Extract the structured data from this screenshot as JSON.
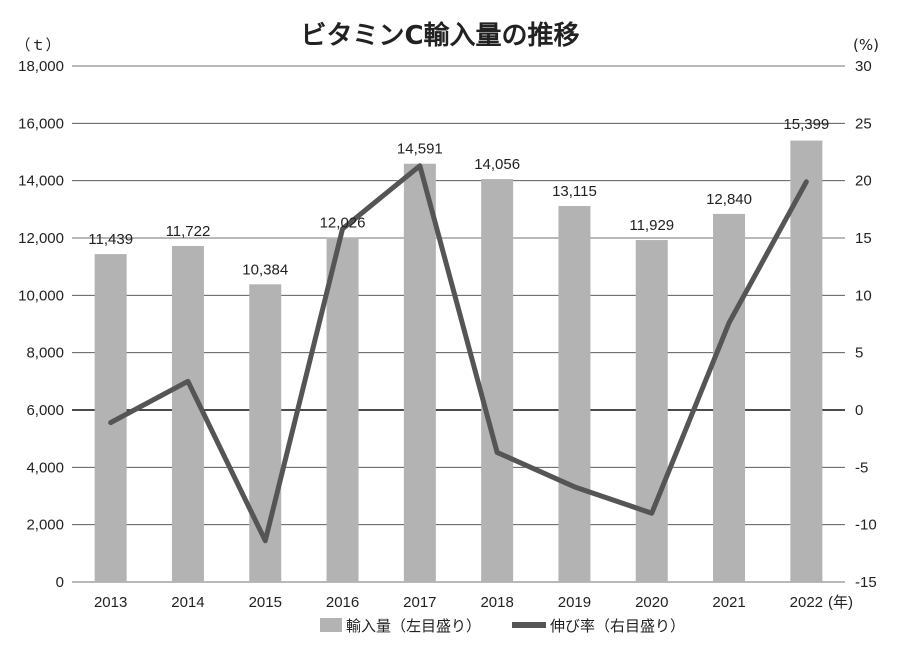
{
  "chart_data": {
    "type": "bar+line",
    "title": "ビタミンC輸入量の推移",
    "left_unit": "（ｔ）",
    "right_unit": "(%)",
    "year_suffix": "(年)",
    "categories": [
      "2013",
      "2014",
      "2015",
      "2016",
      "2017",
      "2018",
      "2019",
      "2020",
      "2021",
      "2022"
    ],
    "series": [
      {
        "name": "輸入量（左目盛り）",
        "type": "bar",
        "axis": "left",
        "color": "#b3b3b3",
        "values": [
          11439,
          11722,
          10384,
          12026,
          14591,
          14056,
          13115,
          11929,
          12840,
          15399
        ],
        "labels": [
          "11,439",
          "11,722",
          "10,384",
          "12,026",
          "14,591",
          "14,056",
          "13,115",
          "11,929",
          "12,840",
          "15,399"
        ]
      },
      {
        "name": "伸び率（右目盛り）",
        "type": "line",
        "axis": "right",
        "color": "#555555",
        "values": [
          -1.1,
          2.5,
          -11.4,
          15.8,
          21.3,
          -3.7,
          -6.7,
          -9.0,
          7.6,
          19.9
        ]
      }
    ],
    "left_axis": {
      "ylim": [
        0,
        18000
      ],
      "ticks": [
        "0",
        "2,000",
        "4,000",
        "6,000",
        "8,000",
        "10,000",
        "12,000",
        "14,000",
        "16,000",
        "18,000"
      ]
    },
    "right_axis": {
      "ylim": [
        -15,
        30
      ],
      "ticks": [
        "-15",
        "-10",
        "-5",
        "0",
        "5",
        "10",
        "15",
        "20",
        "25",
        "30"
      ]
    },
    "grid": true,
    "legend_position": "bottom"
  }
}
